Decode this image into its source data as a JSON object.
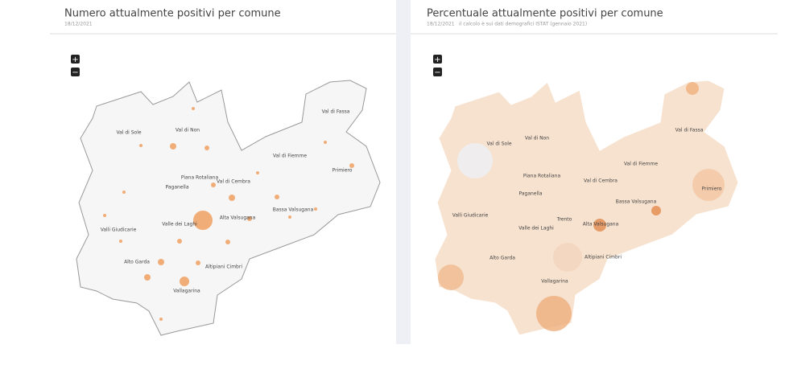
{
  "left": {
    "title": "Numero attualmente positivi per comune",
    "date": "18/12/2021",
    "labels": [
      "Val di Fassa",
      "Val di Sole",
      "Val di Non",
      "Val di Fiemme",
      "Primiero",
      "Piana Rotaliana",
      "Val di Cembra",
      "Paganella",
      "Bassa Valsugana",
      "Alta Valsugana",
      "Valle dei Laghi",
      "Valli Giudicarie",
      "Alto Garda",
      "Altipiani Cimbri",
      "Vallagarina"
    ]
  },
  "right": {
    "title": "Percentuale attualmente positivi per comune",
    "date": "18/12/2021",
    "note": "il calcolo è sui dati demografici ISTAT (gennaio 2021)",
    "labels": [
      "Val di Fassa",
      "Val di Sole",
      "Val di Non",
      "Val di Fiemme",
      "Primiero",
      "Piana Rotaliana",
      "Val di Cembra",
      "Paganella",
      "Bassa Valsugana",
      "Trento",
      "Alta Valsugana",
      "Valle dei Laghi",
      "Valli Giudicarie",
      "Alto Garda",
      "Altipiani Cimbri",
      "Vallagarina"
    ]
  },
  "zoom": {
    "in": "+",
    "out": "−"
  }
}
